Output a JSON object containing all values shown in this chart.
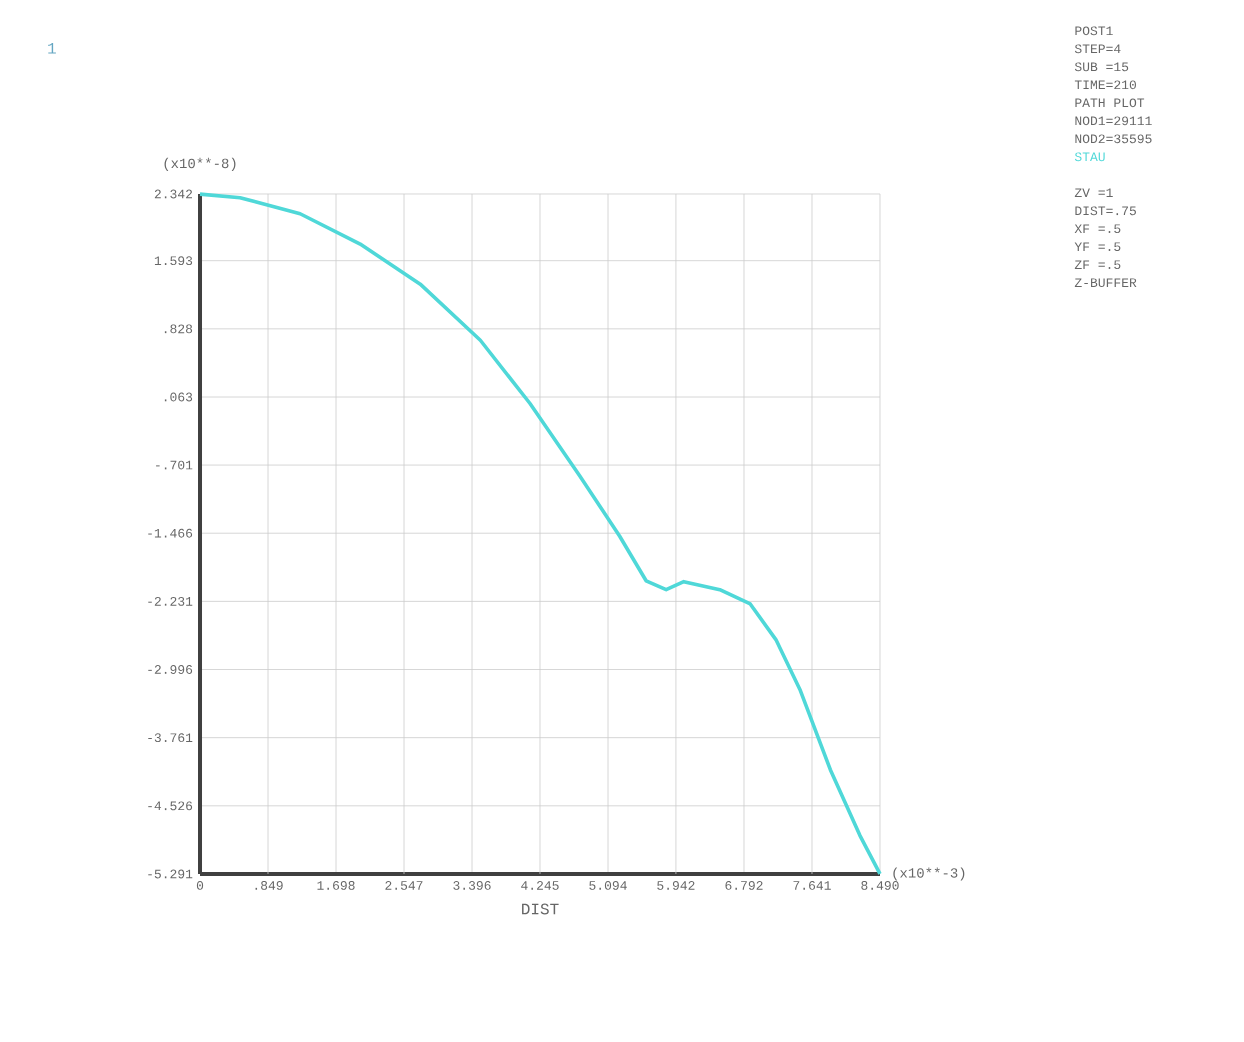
{
  "chart_data": {
    "type": "line",
    "xlabel": "DIST",
    "annotations": [
      "1",
      "(x10**-8)",
      "(x10**-3)",
      "POST1",
      "STEP=4",
      "SUB =15",
      "TIME=210",
      "PATH PLOT",
      "NOD1=29111",
      "NOD2=35595",
      "ZV  =1",
      "DIST=.75",
      "XF  =.5",
      "YF  =.5",
      "ZF  =.5",
      "Z-BUFFER"
    ],
    "x": [
      0,
      0.5,
      1.25,
      2.0,
      2.75,
      3.5,
      4.12,
      4.74,
      5.24,
      5.57,
      5.82,
      6.04,
      6.49,
      6.87,
      7.19,
      7.49,
      7.87,
      8.24,
      8.49
    ],
    "series": [
      {
        "name": "STAU",
        "color": "#4fd8d8",
        "values": [
          2.34,
          2.3,
          2.12,
          1.78,
          1.33,
          0.7,
          -0.01,
          -0.82,
          -1.5,
          -2.0,
          -2.1,
          -2.01,
          -2.1,
          -2.26,
          -2.66,
          -3.22,
          -4.12,
          -4.86,
          -5.29
        ]
      }
    ],
    "xlim": [
      0,
      8.49
    ],
    "ylim": [
      -5.291,
      2.342
    ],
    "xticks": [
      0,
      {
        "value": 0.849,
        "label": ".849"
      },
      1.698,
      2.547,
      3.396,
      4.245,
      5.094,
      5.942,
      6.792,
      7.641,
      {
        "value": 8.49,
        "label": "8.490"
      }
    ],
    "yticks": [
      2.342,
      1.593,
      {
        "value": 0.828,
        "label": ".828"
      },
      {
        "value": 0.063,
        "label": ".063"
      },
      {
        "value": -0.701,
        "label": "-.701"
      },
      -1.466,
      -2.231,
      -2.996,
      -3.761,
      -4.526,
      -5.291
    ],
    "grid": true,
    "legend": false,
    "marker": "none",
    "line_style": "solid"
  }
}
